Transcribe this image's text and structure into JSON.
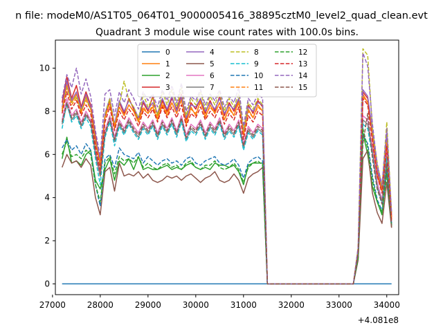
{
  "figure": {
    "suptitle": "n file: modeM0/AS1T05_064T01_9000005416_38895cztM0_level2_quad_clean.evt",
    "background": "#ffffff"
  },
  "chart_data": {
    "type": "line",
    "title": "Quadrant 3 module wise count rates with 100.0s bins.",
    "xlabel": "",
    "ylabel": "",
    "x_offset_label": "+4.081e8",
    "xlim": [
      27060,
      34250
    ],
    "ylim": [
      -0.5,
      11.3
    ],
    "x_ticks": [
      27000,
      28000,
      29000,
      30000,
      31000,
      32000,
      33000,
      34000
    ],
    "x_tick_labels": [
      "27000",
      "28000",
      "29000",
      "30000",
      "31000",
      "32000",
      "33000",
      "34000"
    ],
    "y_ticks": [
      0,
      2,
      4,
      6,
      8,
      10
    ],
    "y_tick_labels": [
      "0",
      "2",
      "4",
      "6",
      "8",
      "10"
    ],
    "grid": false,
    "legend": {
      "placement": "top-center",
      "columns": 4
    },
    "x": [
      27200,
      27300,
      27400,
      27500,
      27600,
      27700,
      27800,
      27900,
      28000,
      28100,
      28200,
      28300,
      28400,
      28500,
      28600,
      28700,
      28800,
      28900,
      29000,
      29100,
      29200,
      29300,
      29400,
      29500,
      29600,
      29700,
      29800,
      29900,
      30000,
      30100,
      30200,
      30300,
      30400,
      30500,
      30600,
      30700,
      30800,
      30900,
      31000,
      31100,
      31200,
      31300,
      31400,
      31500,
      31600,
      33300,
      33400,
      33500,
      33600,
      33700,
      33800,
      33900,
      34000,
      34100
    ],
    "series": [
      {
        "name": "0",
        "color": "#1f77b4",
        "dash": "solid",
        "values": [
          0,
          0,
          0,
          0,
          0,
          0,
          0,
          0,
          0,
          0,
          0,
          0,
          0,
          0,
          0,
          0,
          0,
          0,
          0,
          0,
          0,
          0,
          0,
          0,
          0,
          0,
          0,
          0,
          0,
          0,
          0,
          0,
          0,
          0,
          0,
          0,
          0,
          0,
          0,
          0,
          0,
          0,
          0,
          0,
          0,
          0,
          0,
          0,
          0,
          0,
          0,
          0,
          0,
          0
        ]
      },
      {
        "name": "1",
        "color": "#ff7f0e",
        "dash": "solid",
        "values": [
          8.0,
          9.3,
          8.4,
          8.8,
          7.9,
          8.7,
          8.1,
          6.5,
          5.6,
          7.7,
          8.4,
          7.2,
          8.2,
          7.8,
          8.3,
          8.0,
          7.5,
          8.1,
          7.9,
          8.2,
          7.6,
          8.3,
          7.8,
          8.4,
          7.9,
          8.6,
          7.4,
          8.2,
          7.8,
          8.5,
          7.7,
          8.3,
          7.9,
          8.4,
          7.6,
          8.2,
          7.8,
          8.5,
          6.9,
          8.1,
          7.7,
          8.3,
          8.0,
          0,
          0,
          0,
          1.5,
          8.8,
          8.4,
          6.8,
          5.0,
          4.3,
          6.5,
          3.0
        ]
      },
      {
        "name": "2",
        "color": "#2ca02c",
        "dash": "solid",
        "values": [
          5.8,
          6.8,
          5.6,
          5.7,
          5.5,
          6.0,
          6.2,
          4.8,
          4.4,
          5.3,
          5.8,
          4.8,
          5.7,
          5.5,
          5.8,
          5.3,
          5.9,
          5.3,
          5.4,
          5.3,
          5.3,
          5.4,
          5.5,
          5.3,
          5.4,
          5.3,
          5.5,
          5.6,
          5.4,
          5.3,
          5.4,
          5.3,
          5.6,
          5.5,
          5.5,
          5.4,
          5.5,
          5.2,
          4.6,
          5.5,
          5.6,
          5.6,
          5.6,
          0,
          0,
          0,
          1.2,
          7.0,
          6.0,
          4.5,
          3.8,
          3.2,
          5.4,
          2.7
        ]
      },
      {
        "name": "3",
        "color": "#d62728",
        "dash": "solid",
        "values": [
          8.4,
          9.6,
          8.6,
          9.2,
          8.2,
          8.9,
          8.3,
          6.9,
          5.5,
          7.8,
          8.5,
          7.3,
          8.4,
          7.9,
          8.6,
          8.1,
          7.6,
          8.4,
          8.0,
          8.7,
          7.8,
          8.5,
          8.0,
          8.6,
          8.1,
          8.8,
          7.6,
          8.4,
          8.1,
          8.6,
          7.9,
          8.5,
          8.0,
          8.7,
          7.8,
          8.4,
          8.0,
          8.6,
          7.0,
          8.3,
          7.9,
          8.5,
          8.2,
          0,
          0,
          0,
          1.6,
          8.9,
          8.6,
          7.0,
          5.2,
          4.4,
          6.8,
          3.1
        ]
      },
      {
        "name": "4",
        "color": "#9467bd",
        "dash": "solid",
        "values": [
          8.2,
          9.4,
          8.5,
          8.9,
          8.1,
          8.8,
          8.2,
          6.7,
          5.8,
          7.9,
          8.6,
          7.4,
          8.5,
          8.0,
          8.5,
          8.2,
          7.7,
          8.5,
          8.1,
          8.4,
          7.9,
          8.6,
          8.1,
          8.7,
          8.0,
          8.7,
          7.7,
          8.3,
          8.2,
          8.6,
          8.0,
          8.4,
          8.1,
          8.6,
          7.9,
          8.3,
          8.1,
          8.6,
          7.1,
          8.2,
          8.0,
          8.4,
          8.3,
          0,
          0,
          0,
          1.6,
          9.0,
          8.7,
          7.1,
          5.3,
          4.5,
          6.9,
          3.2
        ]
      },
      {
        "name": "5",
        "color": "#8c564b",
        "dash": "solid",
        "values": [
          5.4,
          6.0,
          5.6,
          5.7,
          5.4,
          5.8,
          5.5,
          4.0,
          3.2,
          5.2,
          5.4,
          4.3,
          5.6,
          5.0,
          5.1,
          5.0,
          5.2,
          4.9,
          5.1,
          4.8,
          4.7,
          4.8,
          5.0,
          4.9,
          5.0,
          4.8,
          5.0,
          5.1,
          4.9,
          4.7,
          4.9,
          5.0,
          5.2,
          4.8,
          4.7,
          4.8,
          5.1,
          4.8,
          4.2,
          4.9,
          5.1,
          5.2,
          5.4,
          0,
          0,
          0,
          1.1,
          5.8,
          6.2,
          4.2,
          3.3,
          2.8,
          4.7,
          2.6
        ]
      },
      {
        "name": "6",
        "color": "#e377c2",
        "dash": "solid",
        "values": [
          7.6,
          8.6,
          7.8,
          8.1,
          7.5,
          8.0,
          7.6,
          6.2,
          5.2,
          7.1,
          7.8,
          6.8,
          7.6,
          7.2,
          7.7,
          7.3,
          7.0,
          7.5,
          7.2,
          7.6,
          7.0,
          7.6,
          7.2,
          7.7,
          7.1,
          7.8,
          6.9,
          7.4,
          7.2,
          7.6,
          7.0,
          7.5,
          7.2,
          7.7,
          7.0,
          7.4,
          7.1,
          7.6,
          6.5,
          7.3,
          7.0,
          7.4,
          7.2,
          0,
          0,
          0,
          1.4,
          7.8,
          7.6,
          6.3,
          4.7,
          3.9,
          6.1,
          2.8
        ]
      },
      {
        "name": "7",
        "color": "#7f7f7f",
        "dash": "solid",
        "values": [
          7.4,
          8.3,
          7.6,
          7.9,
          7.3,
          7.8,
          7.5,
          6.0,
          5.0,
          6.9,
          7.6,
          6.6,
          7.4,
          7.0,
          7.5,
          7.1,
          6.8,
          7.3,
          7.0,
          7.4,
          6.8,
          7.4,
          7.0,
          7.5,
          6.9,
          7.6,
          6.7,
          7.2,
          7.0,
          7.4,
          6.8,
          7.3,
          7.0,
          7.5,
          6.8,
          7.2,
          6.9,
          7.4,
          6.3,
          7.1,
          6.8,
          7.2,
          7.0,
          0,
          0,
          0,
          1.3,
          7.6,
          7.4,
          6.1,
          4.5,
          3.8,
          5.9,
          2.7
        ]
      },
      {
        "name": "8",
        "color": "#bcbd22",
        "dash": "dashed",
        "values": [
          8.0,
          9.1,
          8.4,
          8.7,
          8.0,
          8.6,
          8.1,
          6.6,
          5.4,
          7.8,
          8.6,
          7.3,
          8.3,
          9.4,
          8.5,
          8.2,
          7.6,
          8.8,
          8.2,
          8.6,
          7.8,
          8.9,
          8.3,
          9.0,
          8.2,
          9.1,
          7.8,
          8.6,
          8.3,
          8.9,
          8.1,
          8.7,
          8.3,
          8.9,
          8.0,
          8.6,
          8.2,
          8.8,
          7.1,
          8.4,
          8.1,
          8.6,
          8.3,
          0,
          0,
          0,
          1.7,
          10.9,
          10.6,
          7.2,
          5.6,
          4.5,
          7.5,
          3.3
        ]
      },
      {
        "name": "9",
        "color": "#17becf",
        "dash": "dashed",
        "values": [
          7.2,
          8.4,
          7.5,
          7.8,
          7.2,
          7.7,
          7.3,
          5.8,
          4.6,
          6.8,
          7.5,
          6.4,
          7.3,
          6.9,
          7.4,
          7.0,
          6.7,
          7.2,
          6.9,
          7.3,
          6.7,
          7.3,
          6.9,
          7.4,
          6.8,
          7.5,
          6.6,
          7.1,
          6.9,
          7.3,
          6.7,
          7.2,
          6.9,
          7.4,
          6.7,
          7.1,
          6.8,
          7.3,
          6.2,
          7.0,
          6.7,
          7.1,
          6.9,
          0,
          0,
          0,
          1.3,
          7.4,
          7.2,
          5.9,
          4.4,
          3.7,
          5.8,
          2.7
        ]
      },
      {
        "name": "10",
        "color": "#1f77b4",
        "dash": "dashed",
        "values": [
          6.3,
          6.7,
          6.2,
          6.4,
          6.0,
          6.5,
          6.2,
          4.6,
          3.6,
          5.8,
          6.0,
          5.4,
          6.3,
          6.0,
          5.9,
          5.8,
          6.1,
          5.6,
          5.9,
          5.7,
          5.5,
          5.7,
          5.8,
          5.6,
          5.7,
          5.5,
          5.8,
          5.9,
          5.6,
          5.5,
          5.7,
          5.8,
          5.9,
          5.6,
          5.5,
          5.6,
          5.8,
          5.5,
          4.9,
          5.6,
          5.8,
          5.9,
          5.7,
          0,
          0,
          0,
          1.3,
          6.9,
          6.5,
          5.0,
          3.9,
          3.4,
          5.2,
          2.8
        ]
      },
      {
        "name": "11",
        "color": "#ff7f0e",
        "dash": "dashed",
        "values": [
          8.1,
          9.2,
          8.3,
          8.6,
          8.0,
          8.5,
          8.1,
          6.6,
          5.6,
          7.7,
          8.4,
          7.3,
          8.2,
          7.8,
          8.3,
          8.0,
          7.5,
          8.2,
          7.9,
          8.3,
          7.7,
          8.4,
          7.9,
          8.4,
          7.9,
          8.5,
          7.5,
          8.1,
          7.9,
          8.4,
          7.8,
          8.2,
          7.9,
          8.4,
          7.6,
          8.1,
          7.8,
          8.4,
          6.9,
          8.0,
          7.7,
          8.2,
          8.0,
          0,
          0,
          0,
          1.5,
          8.7,
          8.4,
          6.8,
          5.1,
          4.3,
          6.6,
          3.0
        ]
      },
      {
        "name": "12",
        "color": "#2ca02c",
        "dash": "dashed",
        "values": [
          6.0,
          6.6,
          5.9,
          6.0,
          5.8,
          6.2,
          6.0,
          4.6,
          3.8,
          5.6,
          5.9,
          5.1,
          5.9,
          5.7,
          5.8,
          5.6,
          5.9,
          5.4,
          5.6,
          5.4,
          5.3,
          5.5,
          5.6,
          5.4,
          5.5,
          5.3,
          5.6,
          5.7,
          5.4,
          5.3,
          5.5,
          5.5,
          5.7,
          5.4,
          5.3,
          5.4,
          5.6,
          5.3,
          4.7,
          5.4,
          5.6,
          5.7,
          5.5,
          0,
          0,
          0,
          1.2,
          7.2,
          6.3,
          4.8,
          3.8,
          3.3,
          5.1,
          2.7
        ]
      },
      {
        "name": "13",
        "color": "#d62728",
        "dash": "dashed",
        "values": [
          7.9,
          8.9,
          8.1,
          8.5,
          7.8,
          8.3,
          7.9,
          6.4,
          5.3,
          7.5,
          8.2,
          7.1,
          8.0,
          7.6,
          8.1,
          7.8,
          7.3,
          8.0,
          7.7,
          8.1,
          7.5,
          8.2,
          7.7,
          8.2,
          7.7,
          8.3,
          7.3,
          7.9,
          7.7,
          8.2,
          7.6,
          8.0,
          7.7,
          8.2,
          7.4,
          7.9,
          7.6,
          8.2,
          6.7,
          7.8,
          7.5,
          8.0,
          7.8,
          0,
          0,
          0,
          1.5,
          8.6,
          8.3,
          6.6,
          5.0,
          4.2,
          6.4,
          2.9
        ]
      },
      {
        "name": "14",
        "color": "#9467bd",
        "dash": "dashed",
        "values": [
          8.6,
          9.7,
          9.1,
          10.0,
          8.8,
          9.5,
          8.7,
          7.1,
          5.9,
          8.8,
          9.0,
          7.8,
          8.9,
          8.4,
          9.0,
          8.6,
          8.1,
          8.9,
          8.5,
          8.8,
          8.2,
          9.0,
          8.5,
          9.2,
          8.4,
          9.3,
          8.0,
          8.7,
          8.5,
          9.0,
          8.3,
          8.8,
          8.5,
          9.0,
          8.2,
          8.7,
          8.4,
          9.1,
          7.3,
          8.6,
          8.3,
          8.8,
          8.6,
          0,
          0,
          0,
          1.7,
          10.7,
          10.1,
          7.4,
          5.5,
          4.6,
          7.2,
          3.3
        ]
      },
      {
        "name": "15",
        "color": "#8c564b",
        "dash": "dashed",
        "values": [
          7.5,
          8.4,
          7.7,
          8.0,
          7.4,
          7.9,
          7.5,
          6.1,
          5.0,
          7.0,
          7.7,
          6.7,
          7.5,
          7.1,
          7.6,
          7.2,
          6.9,
          7.4,
          7.1,
          7.5,
          6.9,
          7.5,
          7.1,
          7.6,
          7.0,
          7.7,
          6.8,
          7.3,
          7.1,
          7.5,
          6.9,
          7.4,
          7.1,
          7.6,
          6.9,
          7.3,
          7.0,
          7.5,
          6.4,
          7.2,
          6.9,
          7.3,
          7.1,
          0,
          0,
          0,
          1.4,
          6.5,
          7.9,
          5.8,
          4.4,
          3.7,
          5.6,
          2.6
        ]
      }
    ]
  }
}
